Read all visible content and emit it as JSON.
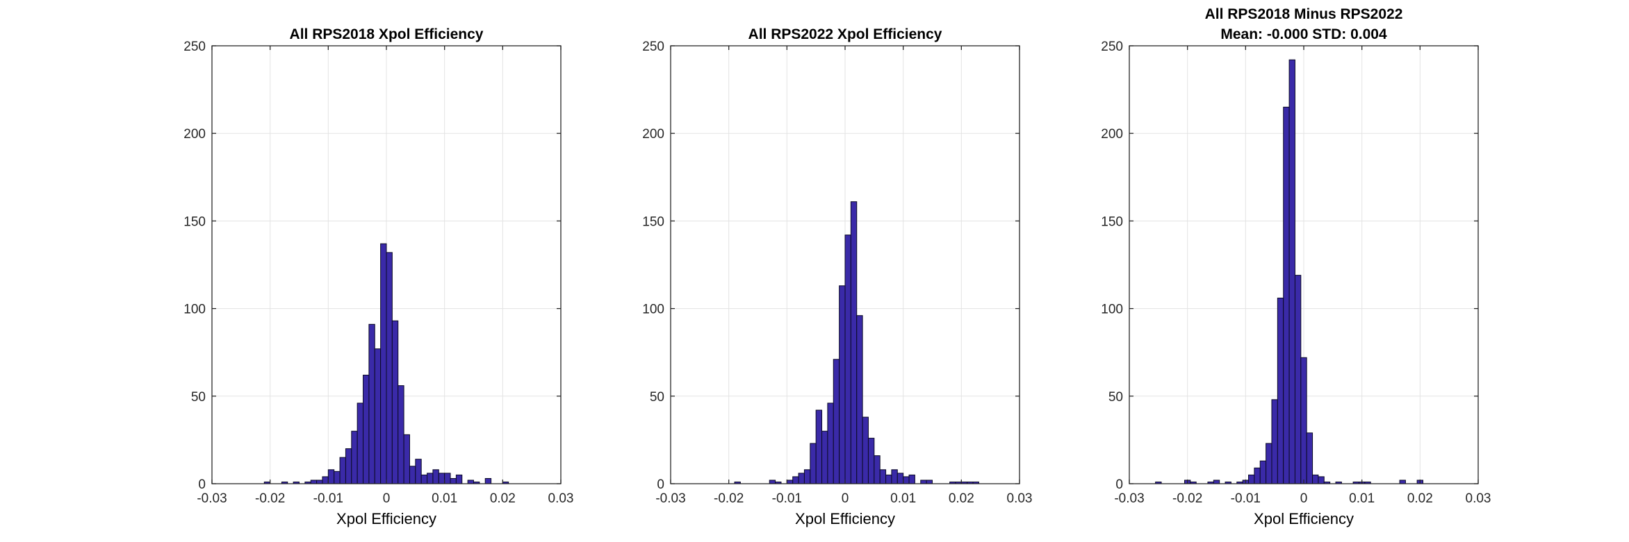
{
  "figure": {
    "bar_color": "#3a2aa8",
    "bar_edge_color": "#0b0a24",
    "grid_color": "#e3e3e3",
    "axis_color": "#262626"
  },
  "chart_data": [
    {
      "type": "bar",
      "title": "All RPS2018 Xpol Efficiency",
      "subtitle": "",
      "xlabel": "Xpol Efficiency",
      "ylabel": "",
      "xlim": [
        -0.03,
        0.03
      ],
      "ylim": [
        0,
        250
      ],
      "xticks": [
        -0.03,
        -0.02,
        -0.01,
        0,
        0.01,
        0.02,
        0.03
      ],
      "xtick_labels": [
        "-0.03",
        "-0.02",
        "-0.01",
        "0",
        "0.01",
        "0.02",
        "0.03"
      ],
      "yticks": [
        0,
        50,
        100,
        150,
        200,
        250
      ],
      "ytick_labels": [
        "0",
        "50",
        "100",
        "150",
        "200",
        "250"
      ],
      "grid": true,
      "bin_width": 0.001,
      "bin_start": -0.021,
      "values": [
        1,
        0,
        0,
        1,
        0,
        1,
        0,
        1,
        2,
        2,
        4,
        8,
        7,
        15,
        20,
        30,
        46,
        62,
        91,
        77,
        137,
        132,
        93,
        56,
        28,
        10,
        14,
        5,
        6,
        8,
        6,
        6,
        3,
        5,
        0,
        2,
        1,
        0,
        3,
        0,
        0,
        1
      ]
    },
    {
      "type": "bar",
      "title": "All RPS2022 Xpol Efficiency",
      "subtitle": "",
      "xlabel": "Xpol Efficiency",
      "ylabel": "",
      "xlim": [
        -0.03,
        0.03
      ],
      "ylim": [
        0,
        250
      ],
      "xticks": [
        -0.03,
        -0.02,
        -0.01,
        0,
        0.01,
        0.02,
        0.03
      ],
      "xtick_labels": [
        "-0.03",
        "-0.02",
        "-0.01",
        "0",
        "0.01",
        "0.02",
        "0.03"
      ],
      "yticks": [
        0,
        50,
        100,
        150,
        200,
        250
      ],
      "ytick_labels": [
        "0",
        "50",
        "100",
        "150",
        "200",
        "250"
      ],
      "grid": true,
      "bin_width": 0.001,
      "bin_start": -0.019,
      "values": [
        1,
        0,
        0,
        0,
        0,
        0,
        2,
        1,
        0,
        2,
        4,
        6,
        8,
        23,
        42,
        30,
        46,
        71,
        113,
        142,
        161,
        96,
        38,
        26,
        16,
        8,
        5,
        8,
        6,
        4,
        5,
        0,
        2,
        2,
        0,
        0,
        0,
        1,
        1,
        1,
        1,
        1
      ]
    },
    {
      "type": "bar",
      "title": "All RPS2018 Minus RPS2022",
      "subtitle": "Mean: -0.000 STD: 0.004",
      "xlabel": "Xpol Efficiency",
      "ylabel": "",
      "xlim": [
        -0.03,
        0.03
      ],
      "ylim": [
        0,
        250
      ],
      "xticks": [
        -0.03,
        -0.02,
        -0.01,
        0,
        0.01,
        0.02,
        0.03
      ],
      "xtick_labels": [
        "-0.03",
        "-0.02",
        "-0.01",
        "0",
        "0.01",
        "0.02",
        "0.03"
      ],
      "yticks": [
        0,
        50,
        100,
        150,
        200,
        250
      ],
      "ytick_labels": [
        "0",
        "50",
        "100",
        "150",
        "200",
        "250"
      ],
      "grid": true,
      "bin_width": 0.001,
      "bin_start": -0.0255,
      "values": [
        1,
        0,
        0,
        0,
        0,
        2,
        1,
        0,
        0,
        1,
        2,
        0,
        1,
        0,
        1,
        2,
        5,
        9,
        13,
        23,
        48,
        106,
        215,
        242,
        119,
        72,
        29,
        5,
        4,
        1,
        0,
        1,
        0,
        0,
        1,
        1,
        1,
        0,
        0,
        0,
        0,
        0,
        2,
        0,
        0,
        2
      ]
    }
  ]
}
